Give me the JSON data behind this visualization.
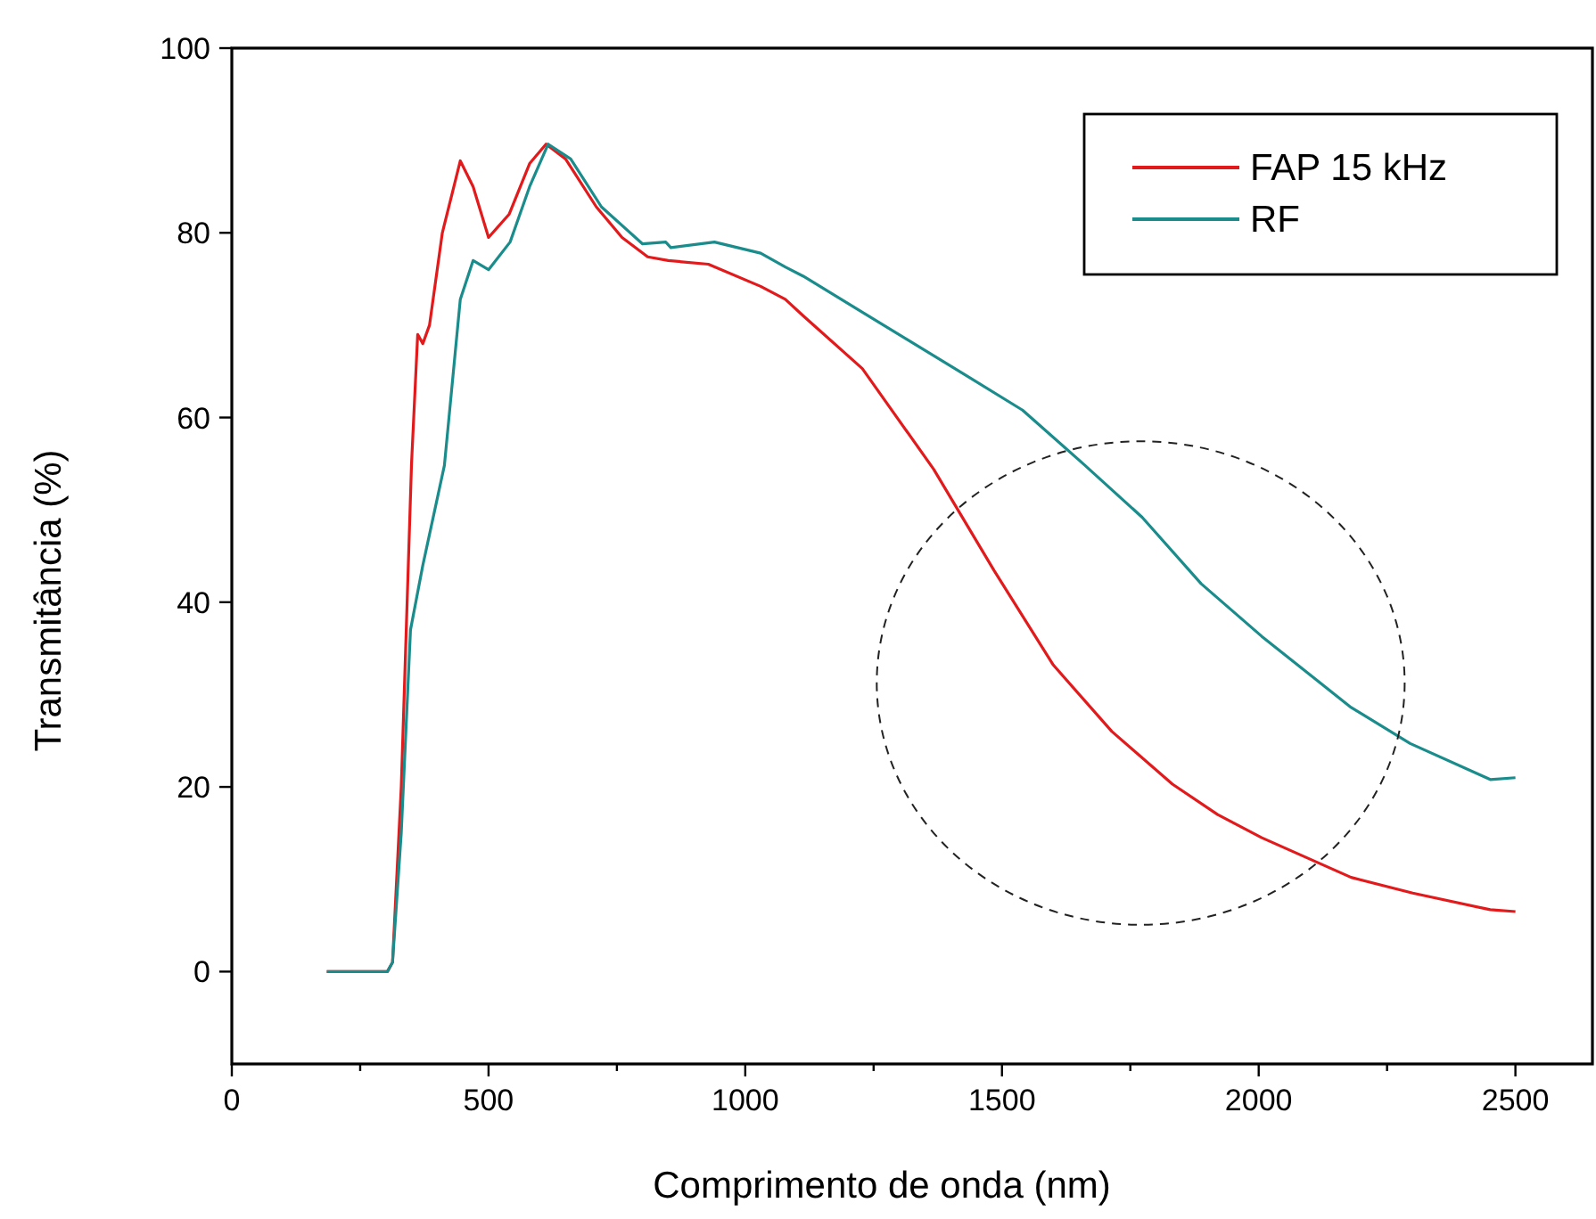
{
  "chart_data": {
    "type": "line",
    "xlabel": "Comprimento de onda (nm)",
    "ylabel": "Transmitância (%)",
    "xlim": [
      0,
      2650
    ],
    "ylim": [
      -10,
      100
    ],
    "xticks": [
      0,
      {
        "value": 250,
        "label": null
      },
      500,
      {
        "value": 750,
        "label": null
      },
      1000,
      {
        "value": 1250,
        "label": null
      },
      1500,
      {
        "value": 1750,
        "label": null
      },
      2000,
      {
        "value": 2250,
        "label": null
      },
      2500
    ],
    "yticks": [
      0,
      20,
      40,
      60,
      80,
      100
    ],
    "grid": false,
    "legend": "top right",
    "line_style": "solid",
    "marker": "none",
    "series": [
      {
        "name": "FAP 15 kHz",
        "color": "#e31a1c",
        "x": [
          185,
          303,
          313,
          330,
          350,
          362,
          372,
          385,
          410,
          445,
          470,
          500,
          540,
          580,
          612,
          650,
          710,
          760,
          810,
          850,
          928,
          1030,
          1078,
          1113,
          1228,
          1367,
          1485,
          1600,
          1714,
          1832,
          1920,
          2006,
          2180,
          2300,
          2451,
          2500
        ],
        "values": [
          0,
          0,
          1,
          20,
          55,
          69,
          68,
          70,
          80,
          87.8,
          85,
          79.5,
          82,
          87.5,
          89.6,
          88,
          82.8,
          79.5,
          77.4,
          77,
          76.6,
          74.2,
          72.8,
          71,
          65.3,
          54.4,
          43.4,
          33.2,
          26,
          20.3,
          17,
          14.5,
          10.2,
          8.5,
          6.7,
          6.5
        ]
      },
      {
        "name": "RF",
        "color": "#1a8c8c",
        "x": [
          185,
          303,
          313,
          330,
          348,
          372,
          414,
          445,
          470,
          500,
          542,
          580,
          616,
          660,
          720,
          800,
          845,
          855,
          940,
          1030,
          1078,
          1113,
          1228,
          1426,
          1540,
          1658,
          1773,
          1888,
          2006,
          2180,
          2295,
          2451,
          2500
        ],
        "values": [
          0,
          0,
          1,
          15,
          37,
          44,
          54.8,
          72.8,
          77,
          76,
          79,
          85,
          89.6,
          88,
          82.8,
          78.8,
          79,
          78.4,
          79,
          77.8,
          76.3,
          75.3,
          71.4,
          64.7,
          60.8,
          55,
          49.2,
          42,
          36.3,
          28.6,
          24.7,
          20.8,
          21
        ]
      }
    ]
  }
}
